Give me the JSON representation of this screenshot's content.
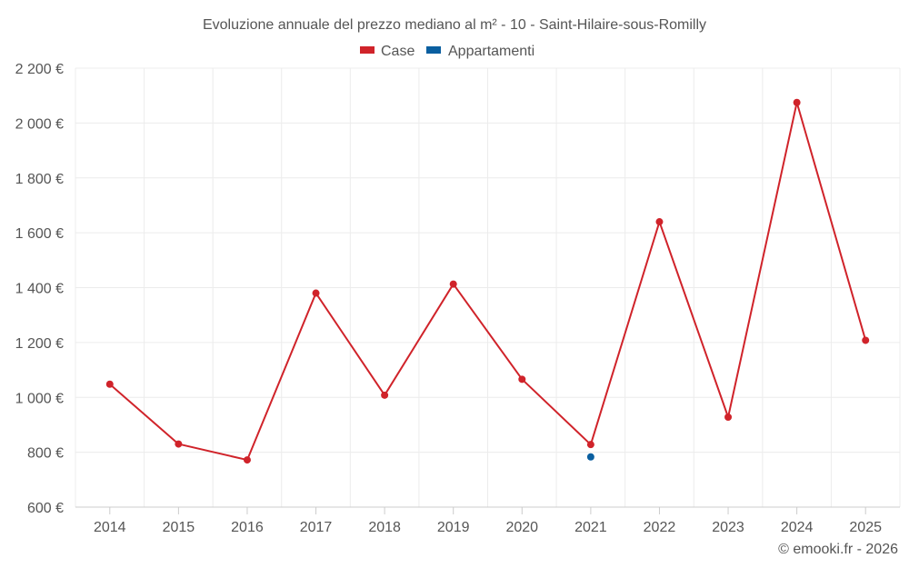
{
  "chart_data": {
    "type": "line",
    "title": "Evoluzione annuale del prezzo mediano al m² - 10 - Saint-Hilaire-sous-Romilly",
    "categories": [
      "2014",
      "2015",
      "2016",
      "2017",
      "2018",
      "2019",
      "2020",
      "2021",
      "2022",
      "2023",
      "2024",
      "2025"
    ],
    "ylim": [
      600,
      2200
    ],
    "yticks": [
      600,
      800,
      1000,
      1200,
      1400,
      1600,
      1800,
      2000,
      2200
    ],
    "ytick_labels": [
      "600 €",
      "800 €",
      "1 000 €",
      "1 200 €",
      "1 400 €",
      "1 600 €",
      "1 800 €",
      "2 000 €",
      "2 200 €"
    ],
    "series": [
      {
        "name": "Case",
        "color": "#d0232a",
        "values": [
          1048,
          830,
          772,
          1380,
          1008,
          1413,
          1066,
          828,
          1640,
          928,
          2075,
          1208
        ]
      },
      {
        "name": "Appartamenti",
        "color": "#0a5fa0",
        "values": [
          null,
          null,
          null,
          null,
          null,
          null,
          null,
          783,
          null,
          null,
          null,
          null
        ]
      }
    ],
    "credit": "© emooki.fr - 2026"
  }
}
